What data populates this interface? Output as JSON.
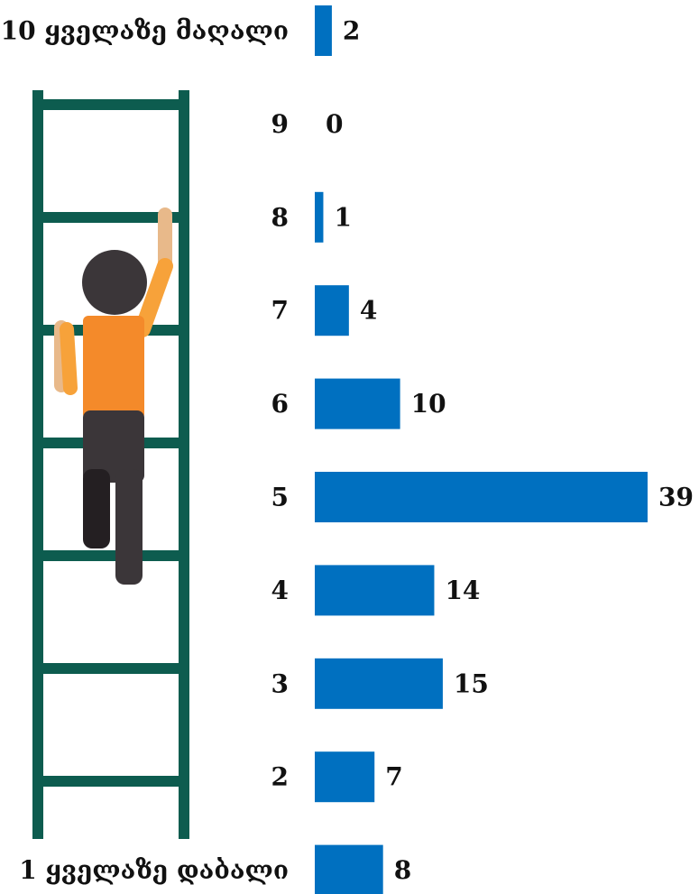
{
  "chart_data": {
    "type": "bar",
    "orientation": "horizontal",
    "categories": [
      "10 ყველაზე მაღალი",
      "9",
      "8",
      "7",
      "6",
      "5",
      "4",
      "3",
      "2",
      "1 ყველაზე დაბალი"
    ],
    "values": [
      2,
      0,
      1,
      4,
      10,
      39,
      14,
      15,
      7,
      8
    ],
    "color": "#0070c0"
  }
}
